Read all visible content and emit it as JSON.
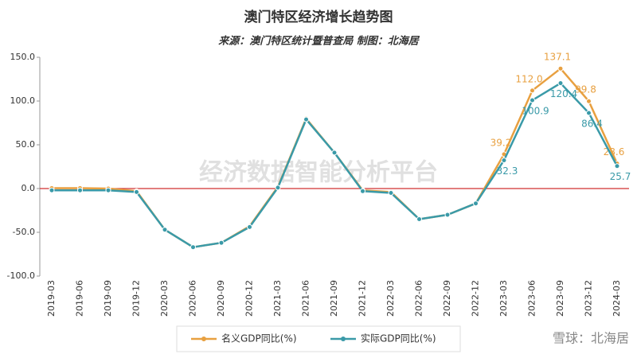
{
  "chart_data": {
    "type": "line",
    "title": "澳门特区经济增长趋势图",
    "subtitle": "来源：澳门特区统计暨普查局 制图：北海居",
    "watermark": "经济数据智能分析平台",
    "credit": "雪球：北海居",
    "categories": [
      "2019-03",
      "2019-06",
      "2019-09",
      "2019-12",
      "2020-03",
      "2020-06",
      "2020-09",
      "2020-12",
      "2021-03",
      "2021-06",
      "2021-09",
      "2021-12",
      "2022-03",
      "2022-06",
      "2022-09",
      "2022-12",
      "2023-03",
      "2023-06",
      "2023-09",
      "2023-12",
      "2024-03"
    ],
    "series": [
      {
        "name": "名义GDP同比(%)",
        "color": "#e8a040",
        "values": [
          0.5,
          0.5,
          0,
          -3,
          -47,
          -67,
          -62,
          -43,
          2,
          80,
          41,
          -2,
          -4,
          -35,
          -30,
          -17,
          39.2,
          112.0,
          137.1,
          99.8,
          28.6
        ],
        "value_labels": [
          null,
          null,
          null,
          null,
          null,
          null,
          null,
          null,
          null,
          null,
          null,
          null,
          null,
          null,
          null,
          null,
          "39.2",
          "112.0",
          "137.1",
          "99.8",
          "28.6"
        ]
      },
      {
        "name": "实际GDP同比(%)",
        "color": "#3a9aa8",
        "values": [
          -2,
          -2,
          -2,
          -4,
          -47,
          -67,
          -62,
          -44,
          1,
          79,
          41,
          -3,
          -5,
          -35,
          -30,
          -17,
          32.3,
          100.9,
          120.4,
          86.4,
          25.7
        ],
        "value_labels": [
          null,
          null,
          null,
          null,
          null,
          null,
          null,
          null,
          null,
          null,
          null,
          null,
          null,
          null,
          null,
          null,
          "32.3",
          "100.9",
          "120.4",
          "86.4",
          "25.7"
        ]
      }
    ],
    "ylim": [
      -100,
      150
    ],
    "yticks": [
      {
        "value": -100,
        "label": "-100.0"
      },
      {
        "value": -50,
        "label": "-50.0"
      },
      {
        "value": 0,
        "label": "0.0"
      },
      {
        "value": 50,
        "label": "50.0"
      },
      {
        "value": 100,
        "label": "100.0"
      },
      {
        "value": 150,
        "label": "150.0"
      }
    ],
    "zero_line_color": "#d03030",
    "legend": "bottom"
  }
}
